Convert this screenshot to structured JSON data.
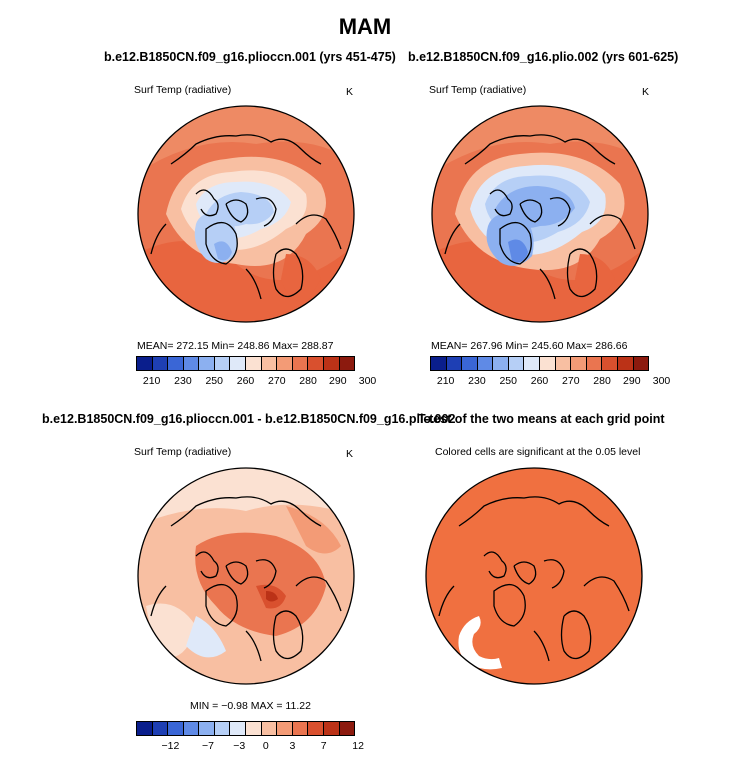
{
  "title": "MAM",
  "panels": [
    {
      "title": "b.e12.B1850CN.f09_g16.plioccn.001 (yrs 451-475)",
      "variable": "Surf Temp (radiative)",
      "units": "K",
      "stats": "MEAN= 272.15   Min= 248.86   Max= 288.87"
    },
    {
      "title": "b.e12.B1850CN.f09_g16.plio.002 (yrs 601-625)",
      "variable": "Surf Temp (radiative)",
      "units": "K",
      "stats": "MEAN= 267.96   Min= 245.60   Max= 286.66"
    },
    {
      "title": "b.e12.B1850CN.f09_g16.plioccn.001 - b.e12.B1850CN.f09_g16.plio.002",
      "variable": "Surf Temp (radiative)",
      "units": "K",
      "stats": "MIN =   −0.98  MAX =   11.22"
    },
    {
      "title": "T-test of the two means at each grid point",
      "variable": "Colored cells are significant at the 0.05 level",
      "units": "",
      "stats": ""
    }
  ],
  "colorbar_abs": {
    "colors": [
      "#0a1e8c",
      "#1e3fb4",
      "#3a66d6",
      "#5f8ae6",
      "#8cb0f0",
      "#b6cff6",
      "#dfe9f9",
      "#fbe1d2",
      "#f8bfa2",
      "#f39b76",
      "#ea7550",
      "#d9502e",
      "#bb3217",
      "#8c1a0e"
    ],
    "labels": [
      "210",
      "230",
      "250",
      "260",
      "270",
      "280",
      "290",
      "300"
    ]
  },
  "colorbar_diff": {
    "colors": [
      "#0a1e8c",
      "#1e3fb4",
      "#3a66d6",
      "#5f8ae6",
      "#8cb0f0",
      "#b6cff6",
      "#dfe9f9",
      "#fbe1d2",
      "#f8bfa2",
      "#f39b76",
      "#ea7550",
      "#d9502e",
      "#bb3217",
      "#8c1a0e"
    ],
    "labels": [
      "−12",
      "−7",
      "−3",
      "0",
      "3",
      "7",
      "12"
    ]
  }
}
